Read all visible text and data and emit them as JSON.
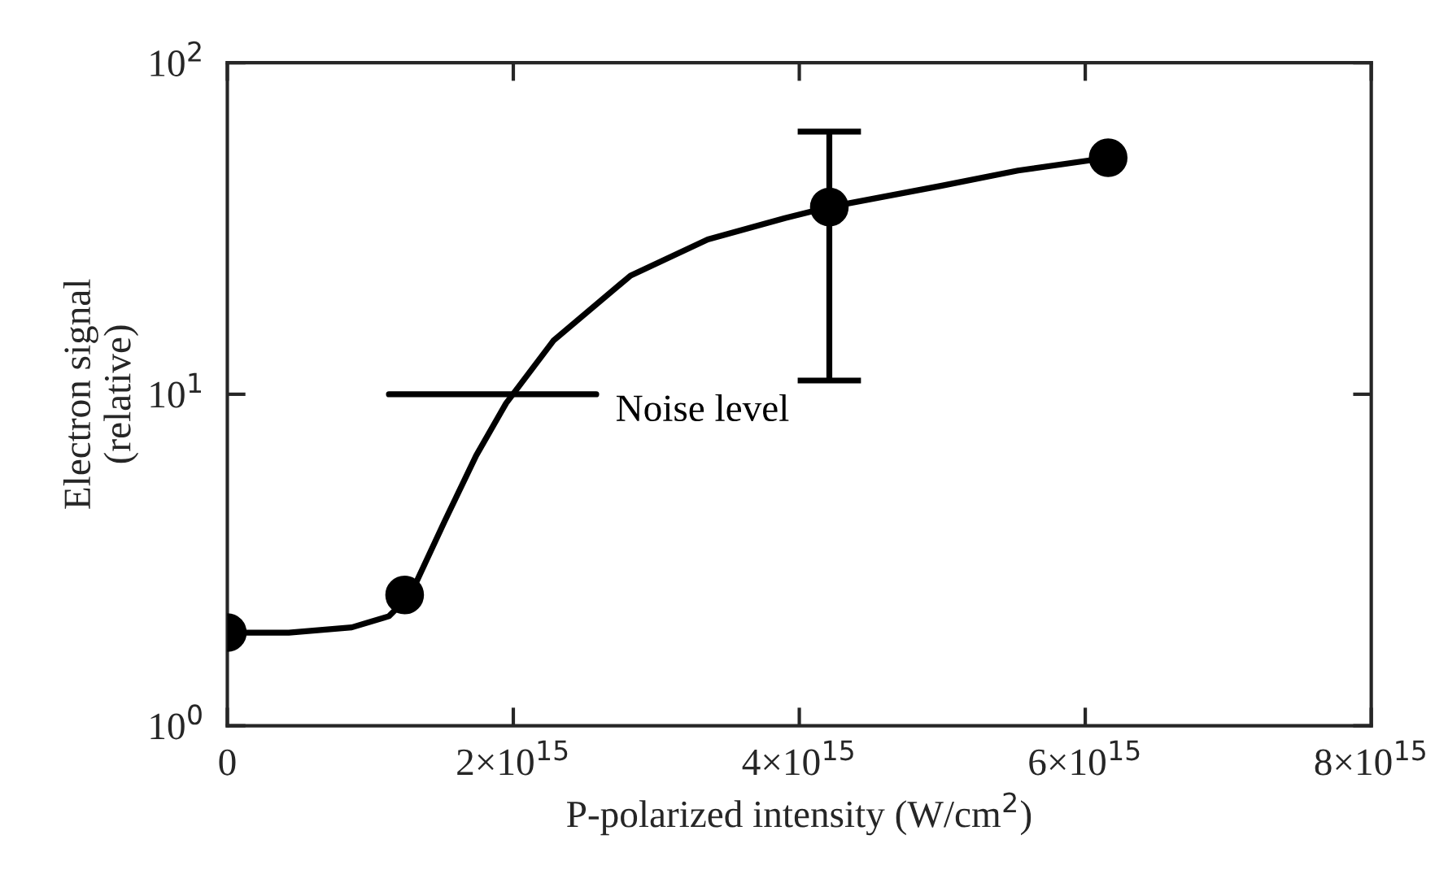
{
  "chart_data": {
    "type": "scatter",
    "xlabel": "P-polarized intensity (W/cm$^{2}$)",
    "ylabel": "Electron signal\n(relative)",
    "log": "y",
    "xlim": [
      0,
      8000000000000000.0
    ],
    "xticks": [
      0,
      {
        "value": 2000000000000000.0,
        "label": "2×10$^{15}$"
      },
      {
        "value": 4000000000000000.0,
        "label": "4×10$^{15}$"
      },
      {
        "value": 6000000000000000.0,
        "label": "6×10$^{15}$"
      },
      {
        "value": 8000000000000000.0,
        "label": "8×10$^{15}$"
      }
    ],
    "ylim": [
      1,
      100
    ],
    "yticks": [
      {
        "value": 1,
        "label": "10$^{0}$"
      },
      {
        "value": 10,
        "label": "10$^{1}$"
      },
      {
        "value": 100,
        "label": "10$^{2}$"
      }
    ],
    "grid": false,
    "series": [
      {
        "type": "line",
        "color": "#000000",
        "marker": "none",
        "line_style": "solid",
        "x": [
          0,
          430000000000000.0,
          870000000000000.0,
          1130000000000000.0,
          1280000000000000.0,
          1520000000000000.0,
          1740000000000000.0,
          1950000000000000.0,
          2280000000000000.0,
          2820000000000000.0,
          3360000000000000.0,
          3900000000000000.0,
          4210000000000000.0,
          4990000000000000.0,
          5530000000000000.0,
          6160000000000000.0
        ],
        "values": [
          1.91,
          1.91,
          1.98,
          2.14,
          2.48,
          4.14,
          6.53,
          9.4,
          14.5,
          22.8,
          29.3,
          34.0,
          36.7,
          42.5,
          47.3,
          51.7
        ]
      },
      {
        "color": "#000000",
        "marker": "circle",
        "x": [
          0,
          1240000000000000.0,
          4210000000000000.0,
          6160000000000000.0
        ],
        "values": [
          1.91,
          2.48,
          36.7,
          51.7
        ],
        "errors": [
          null,
          null,
          [
            11,
            62
          ],
          null
        ]
      },
      {
        "type": "line",
        "name": "Noise level",
        "color": "#000000",
        "marker": "none",
        "line_style": "solid",
        "x": [
          1130000000000000.0,
          2580000000000000.0
        ],
        "values": [
          10,
          10
        ]
      }
    ]
  }
}
